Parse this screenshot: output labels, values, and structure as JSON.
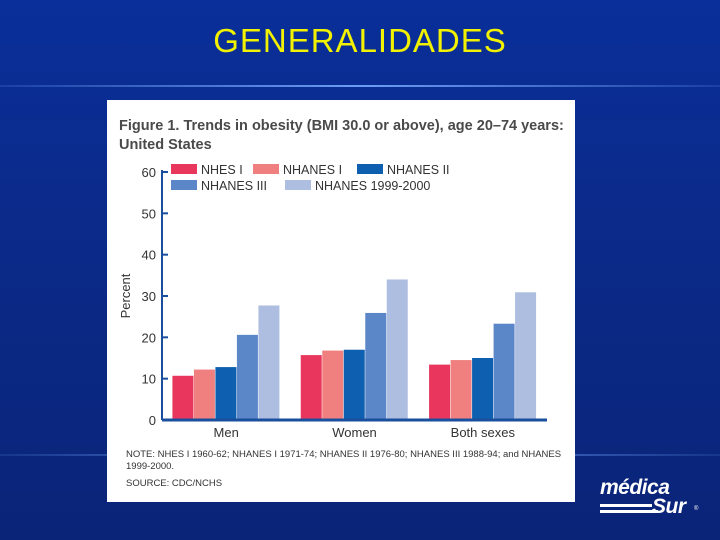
{
  "slide": {
    "title": "GENERALIDADES",
    "title_color": "#f2f200",
    "background": "#0b2b8e"
  },
  "figure": {
    "title": "Figure 1. Trends in obesity (BMI 30.0 or above), age 20–74 years: United States",
    "note": "NOTE: NHES I 1960-62; NHANES I 1971-74; NHANES II 1976-80; NHANES III 1988-94; and NHANES 1999-2000.",
    "source": "SOURCE: CDC/NCHS"
  },
  "logo": {
    "line1": "médica",
    "line2": "Sur",
    "mark": "®"
  },
  "chart_data": {
    "type": "bar",
    "title": "Figure 1. Trends in obesity (BMI 30.0 or above), age 20–74 years: United States",
    "xlabel": "",
    "ylabel": "Percent",
    "ylim": [
      0,
      60
    ],
    "yticks": [
      0,
      10,
      20,
      30,
      40,
      50,
      60
    ],
    "categories": [
      "Men",
      "Women",
      "Both sexes"
    ],
    "legend_position": "top",
    "series": [
      {
        "name": "NHES I",
        "color": "#e8365c",
        "values": [
          10.7,
          15.7,
          13.4
        ]
      },
      {
        "name": "NHANES I",
        "color": "#f08080",
        "values": [
          12.2,
          16.8,
          14.5
        ]
      },
      {
        "name": "NHANES II",
        "color": "#0e5fb0",
        "values": [
          12.8,
          17.0,
          15.0
        ]
      },
      {
        "name": "NHANES III",
        "color": "#5b87c8",
        "values": [
          20.6,
          25.9,
          23.3
        ]
      },
      {
        "name": "NHANES 1999-2000",
        "color": "#aebee0",
        "values": [
          27.7,
          34.0,
          30.9
        ]
      }
    ]
  }
}
